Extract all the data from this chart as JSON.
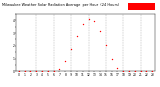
{
  "title": "Milwaukee Weather Solar Radiation Average  per Hour  (24 Hours)",
  "hours": [
    0,
    1,
    2,
    3,
    4,
    5,
    6,
    7,
    8,
    9,
    10,
    11,
    12,
    13,
    14,
    15,
    16,
    17,
    18,
    19,
    20,
    21,
    22,
    23
  ],
  "radiation": [
    0,
    0,
    0,
    0,
    0,
    0,
    2,
    18,
    80,
    175,
    280,
    370,
    410,
    395,
    320,
    210,
    100,
    30,
    5,
    0,
    0,
    0,
    0,
    0
  ],
  "dot_color": "#ff0000",
  "bg_color": "#ffffff",
  "grid_color": "#888888",
  "ylim": [
    0,
    450
  ],
  "xlim": [
    -0.5,
    23.5
  ],
  "vgrid_positions": [
    3,
    6,
    9,
    12,
    15,
    18,
    21
  ],
  "legend_box_color": "#ff0000",
  "title_fontsize": 2.5,
  "marker_size": 1.0,
  "xtick_fontsize": 2.2,
  "ytick_fontsize": 2.2
}
